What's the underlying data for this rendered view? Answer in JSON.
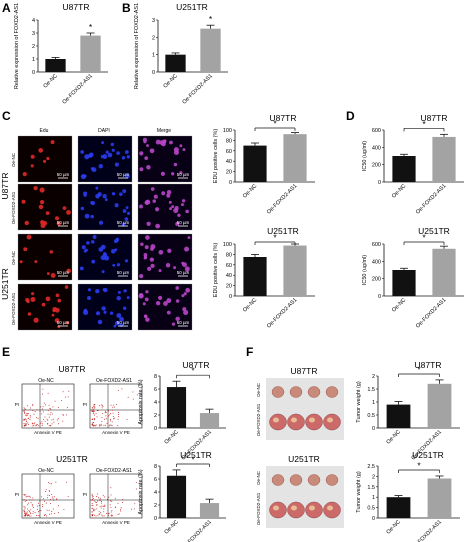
{
  "panel_labels": [
    "A",
    "B",
    "C",
    "D",
    "E",
    "F"
  ],
  "micro": {
    "columns": [
      "Edu",
      "DAPI",
      "Merge"
    ],
    "row_groups": [
      "U87TR",
      "U251TR"
    ],
    "row_labels": [
      "Oe-NC",
      "Oe-FOXD2-AS1",
      "Oe-NC",
      "Oe-FOXD2-AS1"
    ],
    "scale_bar": "50 µm"
  },
  "flow": {
    "sample_labels": [
      "Oe-NC",
      "Oe-FOXD2-AS1"
    ],
    "titles": [
      "U87TR",
      "U251TR"
    ],
    "x_axis": "Annexin V PE",
    "y_axis": "PI"
  },
  "tumor": {
    "titles": [
      "U87TR",
      "U251TR"
    ],
    "row_labels": [
      "Oe-NC",
      "Oe-FOXD2-AS1"
    ]
  },
  "colors": {
    "black_bar": "#111111",
    "gray_bar": "#a3a3a3",
    "error_bar": "#111111",
    "red_cells": "#e02828",
    "blue_nuclei": "#2a3cf0",
    "merge": "#b845c8"
  },
  "chart_data": [
    {
      "id": "A",
      "type": "bar",
      "title": "U87TR",
      "ylabel": "Relative expression of FOXD2-AS1",
      "categories": [
        "Oe-NC",
        "Oe-FOXD2-AS1"
      ],
      "values": [
        1.0,
        2.8
      ],
      "errors": [
        0.12,
        0.2
      ],
      "ylim": [
        0,
        4
      ],
      "yticks": [
        0,
        1,
        2,
        3,
        4
      ],
      "colors": [
        "#111111",
        "#a3a3a3"
      ],
      "sig": "*"
    },
    {
      "id": "B",
      "type": "bar",
      "title": "U251TR",
      "ylabel": "Relative expression of FOXD2-AS1",
      "categories": [
        "Oe-NC",
        "Oe-FOXD2-AS1"
      ],
      "values": [
        1.0,
        2.5
      ],
      "errors": [
        0.1,
        0.2
      ],
      "ylim": [
        0,
        3
      ],
      "yticks": [
        0,
        1,
        2,
        3
      ],
      "colors": [
        "#111111",
        "#a3a3a3"
      ],
      "sig": "*"
    },
    {
      "id": "C1",
      "type": "bar",
      "title": "U87TR",
      "ylabel": "EDU positive cells (%)",
      "categories": [
        "Oe-NC",
        "Oe-FOXD2-AS1"
      ],
      "values": [
        70,
        92
      ],
      "errors": [
        5,
        3
      ],
      "ylim": [
        0,
        100
      ],
      "yticks": [
        0,
        20,
        40,
        60,
        80,
        100
      ],
      "colors": [
        "#111111",
        "#a3a3a3"
      ],
      "sig": "*"
    },
    {
      "id": "C2",
      "type": "bar",
      "title": "U251TR",
      "ylabel": "EDU positive cells (%)",
      "categories": [
        "Oe-NC",
        "Oe-FOXD2-AS1"
      ],
      "values": [
        75,
        97
      ],
      "errors": [
        5,
        3
      ],
      "ylim": [
        0,
        100
      ],
      "yticks": [
        0,
        20,
        40,
        60,
        80,
        100
      ],
      "colors": [
        "#111111",
        "#a3a3a3"
      ],
      "sig": "*"
    },
    {
      "id": "D1",
      "type": "bar",
      "title": "U87TR",
      "ylabel": "IC50 (ug/ml)",
      "categories": [
        "Oe-NC",
        "Oe-FOXD2-AS1"
      ],
      "values": [
        300,
        520
      ],
      "errors": [
        20,
        30
      ],
      "ylim": [
        0,
        600
      ],
      "yticks": [
        0,
        200,
        400,
        600
      ],
      "colors": [
        "#111111",
        "#a3a3a3"
      ],
      "sig": "*"
    },
    {
      "id": "D2",
      "type": "bar",
      "title": "U251TR",
      "ylabel": "IC50 (ug/ml)",
      "categories": [
        "Oe-NC",
        "Oe-FOXD2-AS1"
      ],
      "values": [
        300,
        545
      ],
      "errors": [
        20,
        30
      ],
      "ylim": [
        0,
        600
      ],
      "yticks": [
        0,
        200,
        400,
        600
      ],
      "colors": [
        "#111111",
        "#a3a3a3"
      ],
      "sig": "*"
    },
    {
      "id": "E1",
      "type": "bar",
      "title": "U87TR",
      "ylabel": "Apoptosis rate (%)",
      "categories": [
        "Oe-NC",
        "Oe-FOXD2-AS1"
      ],
      "values": [
        6.3,
        2.3
      ],
      "errors": [
        0.9,
        0.6
      ],
      "ylim": [
        0,
        8
      ],
      "yticks": [
        0,
        2,
        4,
        6,
        8
      ],
      "colors": [
        "#111111",
        "#a3a3a3"
      ],
      "sig": "*"
    },
    {
      "id": "E2",
      "type": "bar",
      "title": "U251TR",
      "ylabel": "Apoptosis rate (%)",
      "categories": [
        "Oe-NC",
        "Oe-FOXD2-AS1"
      ],
      "values": [
        6.5,
        2.3
      ],
      "errors": [
        0.9,
        0.6
      ],
      "ylim": [
        0,
        8
      ],
      "yticks": [
        0,
        2,
        4,
        6,
        8
      ],
      "colors": [
        "#111111",
        "#a3a3a3"
      ],
      "sig": "*"
    },
    {
      "id": "F1",
      "type": "bar",
      "title": "U87TR",
      "ylabel": "Tumor weight (g)",
      "categories": [
        "Oe-NC",
        "Oe-FOXD2-AS1"
      ],
      "values": [
        0.9,
        1.7
      ],
      "errors": [
        0.12,
        0.15
      ],
      "ylim": [
        0,
        2.0
      ],
      "yticks": [
        0.0,
        0.5,
        1.0,
        1.5,
        2.0
      ],
      "colors": [
        "#111111",
        "#a3a3a3"
      ],
      "sig": "*"
    },
    {
      "id": "F2",
      "type": "bar",
      "title": "U251TR",
      "ylabel": "Tumor weight (g)",
      "categories": [
        "Oe-NC",
        "Oe-FOXD2-AS1"
      ],
      "values": [
        1.0,
        1.9
      ],
      "errors": [
        0.08,
        0.12
      ],
      "ylim": [
        0,
        2.5
      ],
      "yticks": [
        0.0,
        0.5,
        1.0,
        1.5,
        2.0,
        2.5
      ],
      "colors": [
        "#111111",
        "#a3a3a3"
      ],
      "sig": "*"
    }
  ]
}
